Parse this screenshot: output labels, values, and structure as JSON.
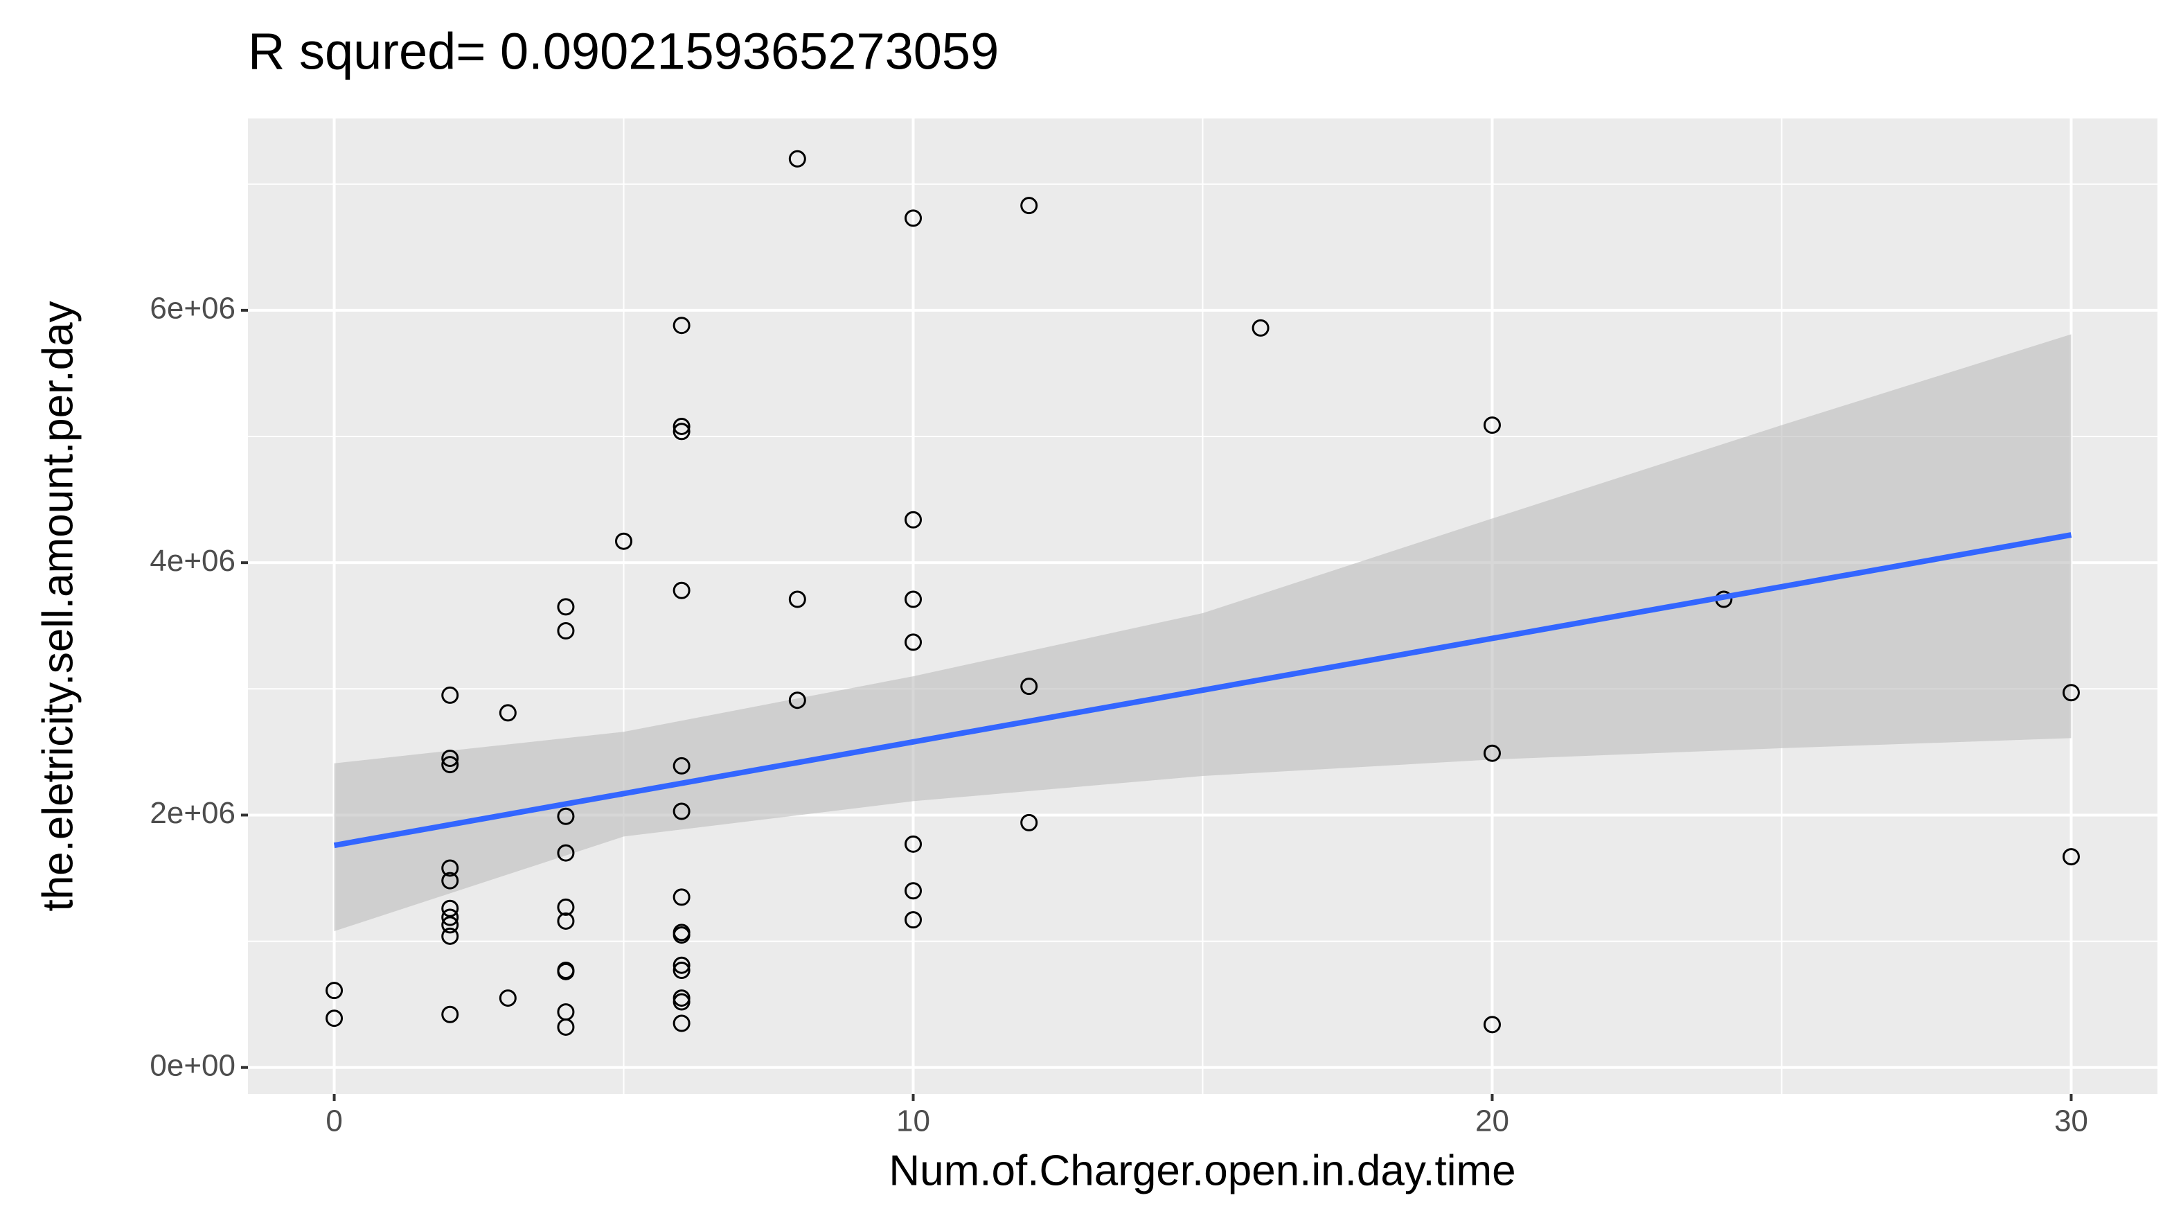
{
  "chart_data": {
    "type": "scatter",
    "title": "R squred= 0.0902159365273059",
    "x_label": "Num.of.Charger.open.in.day.time",
    "y_label": "the.eletricity.sell.amount.per.day",
    "x": [
      0,
      0,
      2,
      2,
      2,
      2,
      2,
      2,
      2,
      2,
      2,
      2,
      3,
      3,
      4,
      4,
      4,
      4,
      4,
      4,
      4,
      4,
      4,
      4,
      5,
      6,
      6,
      6,
      6,
      6,
      6,
      6,
      6,
      6,
      6,
      6,
      6,
      6,
      6,
      8,
      8,
      8,
      10,
      10,
      10,
      10,
      10,
      10,
      10,
      12,
      12,
      12,
      16,
      20,
      20,
      20,
      24,
      30,
      30
    ],
    "values": [
      610000,
      390000,
      2950000,
      2450000,
      2400000,
      1580000,
      1480000,
      1260000,
      1190000,
      1130000,
      1040000,
      420000,
      2810000,
      550000,
      3650000,
      3460000,
      1990000,
      1700000,
      1270000,
      1160000,
      770000,
      760000,
      440000,
      320000,
      4170000,
      5880000,
      5080000,
      5040000,
      3780000,
      2390000,
      2030000,
      1350000,
      1070000,
      1050000,
      810000,
      770000,
      550000,
      520000,
      350000,
      7200000,
      3710000,
      2910000,
      6730000,
      4340000,
      3710000,
      3370000,
      1770000,
      1400000,
      1170000,
      6830000,
      3020000,
      1940000,
      5860000,
      5090000,
      2490000,
      340000,
      3710000,
      2970000,
      1670000
    ],
    "color": "#000000",
    "fit": {
      "x": [
        0,
        5,
        10,
        15,
        20,
        25,
        30
      ],
      "values": [
        1760000,
        2170000,
        2580000,
        2990000,
        3400000,
        3810000,
        4220000
      ],
      "lower": [
        1080000,
        1830000,
        2110000,
        2310000,
        2440000,
        2530000,
        2610000
      ],
      "upper": [
        2410000,
        2660000,
        3100000,
        3600000,
        4350000,
        5090000,
        5810000
      ],
      "color": "#3366ff",
      "band_color": "#bdbdbd"
    },
    "xlim": [
      -1.49,
      31.49
    ],
    "ylim": [
      -210000,
      7520000
    ],
    "xticks": [
      0,
      10,
      20,
      30
    ],
    "yticks": [
      {
        "value": 0,
        "label": "0e+00"
      },
      {
        "value": 2000000,
        "label": "2e+06"
      },
      {
        "value": 4000000,
        "label": "4e+06"
      },
      {
        "value": 6000000,
        "label": "6e+06"
      }
    ],
    "x_minor_grid": [
      5,
      15,
      25
    ],
    "y_minor_grid": [
      1000000,
      3000000,
      5000000,
      7000000
    ],
    "grid": true
  }
}
